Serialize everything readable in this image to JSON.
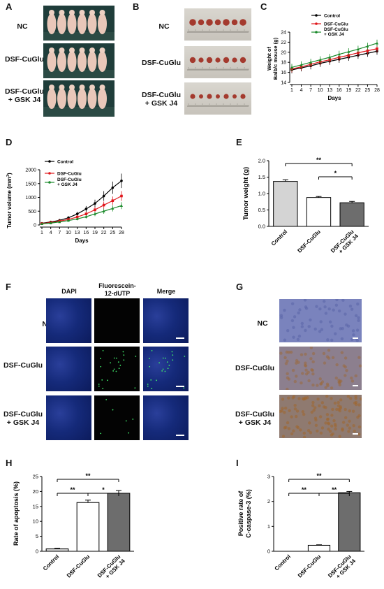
{
  "panels": {
    "A": "A",
    "B": "B",
    "C": "C",
    "D": "D",
    "E": "E",
    "F": "F",
    "G": "G",
    "H": "H",
    "I": "I"
  },
  "groups": {
    "nc": "NC",
    "dsf": "DSF-CuGlu",
    "dsf_gsk_1": "DSF-CuGlu",
    "dsf_gsk_2": "+ GSK J4"
  },
  "legend": {
    "control": "Control",
    "dsf": "DSF-CuGlu",
    "gsk1": "DSF-CuGlu",
    "gsk2": "+ GSK J4"
  },
  "colors": {
    "control": "#000000",
    "dsf": "#e0161b",
    "gsk": "#1a8a2a",
    "bar_control": "#d4d4d4",
    "bar_dsf": "#ffffff",
    "bar_gsk": "#6d6d6d"
  },
  "panelF": {
    "col1": "DAPI",
    "col2a": "Fluorescein-",
    "col2b": "12-dUTP",
    "col3": "Merge"
  },
  "chart_data": [
    {
      "id": "C",
      "type": "line",
      "ylabel_line1": "Weight of",
      "ylabel_line2": "Balb/c mouse (g)",
      "xlabel": "Days",
      "x": [
        1,
        4,
        7,
        10,
        13,
        16,
        19,
        22,
        25,
        28
      ],
      "ylim": [
        14,
        24
      ],
      "yticks": [
        14,
        16,
        18,
        20,
        22,
        24
      ],
      "series": [
        {
          "name": "Control",
          "color": "#000000",
          "values": [
            16.5,
            16.9,
            17.3,
            17.8,
            18.2,
            18.6,
            19.0,
            19.4,
            19.8,
            20.2
          ]
        },
        {
          "name": "DSF-CuGlu",
          "color": "#e0161b",
          "values": [
            16.7,
            17.1,
            17.6,
            18.1,
            18.5,
            19.0,
            19.4,
            19.9,
            20.3,
            20.7
          ]
        },
        {
          "name": "DSF-CuGlu + GSK J4",
          "color": "#1a8a2a",
          "values": [
            17.0,
            17.5,
            18.0,
            18.5,
            19.0,
            19.6,
            20.1,
            20.6,
            21.2,
            21.8
          ]
        }
      ]
    },
    {
      "id": "D",
      "type": "line",
      "ylabel_main": "Tumor volume (mm",
      "ylabel_sup": "3",
      "ylabel_end": ")",
      "xlabel": "Days",
      "x": [
        1,
        4,
        7,
        10,
        13,
        16,
        19,
        22,
        25,
        28
      ],
      "ylim": [
        0,
        2000
      ],
      "yticks": [
        0,
        500,
        1000,
        1500,
        2000
      ],
      "series": [
        {
          "name": "Control",
          "color": "#000000",
          "values": [
            60,
            110,
            170,
            260,
            400,
            580,
            780,
            1050,
            1350,
            1600
          ]
        },
        {
          "name": "DSF-CuGlu",
          "color": "#e0161b",
          "values": [
            50,
            90,
            140,
            200,
            290,
            400,
            550,
            720,
            880,
            1050
          ]
        },
        {
          "name": "DSF-CuGlu + GSK J4",
          "color": "#1a8a2a",
          "values": [
            40,
            70,
            110,
            160,
            220,
            300,
            400,
            500,
            600,
            700
          ]
        }
      ]
    },
    {
      "id": "E",
      "type": "bar",
      "ylabel": "Tumor weight (g)",
      "categories": [
        "Control",
        "DSF-CuGlu",
        "DSF-CuGlu + GSK J4"
      ],
      "cat_lines": [
        [
          "Control"
        ],
        [
          "DSF-CuGlu"
        ],
        [
          "DSF-CuGlu",
          "+ GSK J4"
        ]
      ],
      "values": [
        1.37,
        0.88,
        0.72
      ],
      "errors": [
        0.05,
        0.03,
        0.04
      ],
      "ylim": [
        0,
        2.0
      ],
      "yticks": [
        "0.0",
        "0.5",
        "1.0",
        "1.5",
        "2.0"
      ],
      "sig": [
        {
          "from": 0,
          "to": 2,
          "label": "**"
        },
        {
          "from": 1,
          "to": 2,
          "label": "*"
        }
      ]
    },
    {
      "id": "H",
      "type": "bar",
      "ylabel": "Rate of apoptosis (%)",
      "categories": [
        "Control",
        "DSF-CuGlu",
        "DSF-CuGlu + GSK J4"
      ],
      "cat_lines": [
        [
          "Control"
        ],
        [
          "DSF-CuGlu"
        ],
        [
          "DSF-CuGlu",
          "+ GSK J4"
        ]
      ],
      "values": [
        0.8,
        16.3,
        19.4
      ],
      "errors": [
        0.2,
        0.8,
        0.9
      ],
      "ylim": [
        0,
        25
      ],
      "yticks": [
        "0",
        "5",
        "10",
        "15",
        "20",
        "25"
      ],
      "sig": [
        {
          "from": 0,
          "to": 2,
          "label": "**"
        },
        {
          "from": 0,
          "to": 1,
          "label": "**"
        },
        {
          "from": 1,
          "to": 2,
          "label": "*"
        }
      ]
    },
    {
      "id": "I",
      "type": "bar",
      "ylabel_line1": "Positive rate of",
      "ylabel_line2": "C-caspase-3 (%)",
      "categories": [
        "Control",
        "DSF-CuGlu",
        "DSF-CuGlu + GSK J4"
      ],
      "cat_lines": [
        [
          "Control"
        ],
        [
          "DSF-CuGlu"
        ],
        [
          "DSF-CuGlu",
          "+ GSK J4"
        ]
      ],
      "values": [
        0.0,
        0.24,
        2.35
      ],
      "errors": [
        0.0,
        0.02,
        0.05
      ],
      "ylim": [
        0,
        3
      ],
      "yticks": [
        "0",
        "1",
        "2",
        "3"
      ],
      "sig": [
        {
          "from": 0,
          "to": 2,
          "label": "**"
        },
        {
          "from": 0,
          "to": 1,
          "label": "**"
        },
        {
          "from": 1,
          "to": 2,
          "label": "**"
        }
      ]
    }
  ]
}
